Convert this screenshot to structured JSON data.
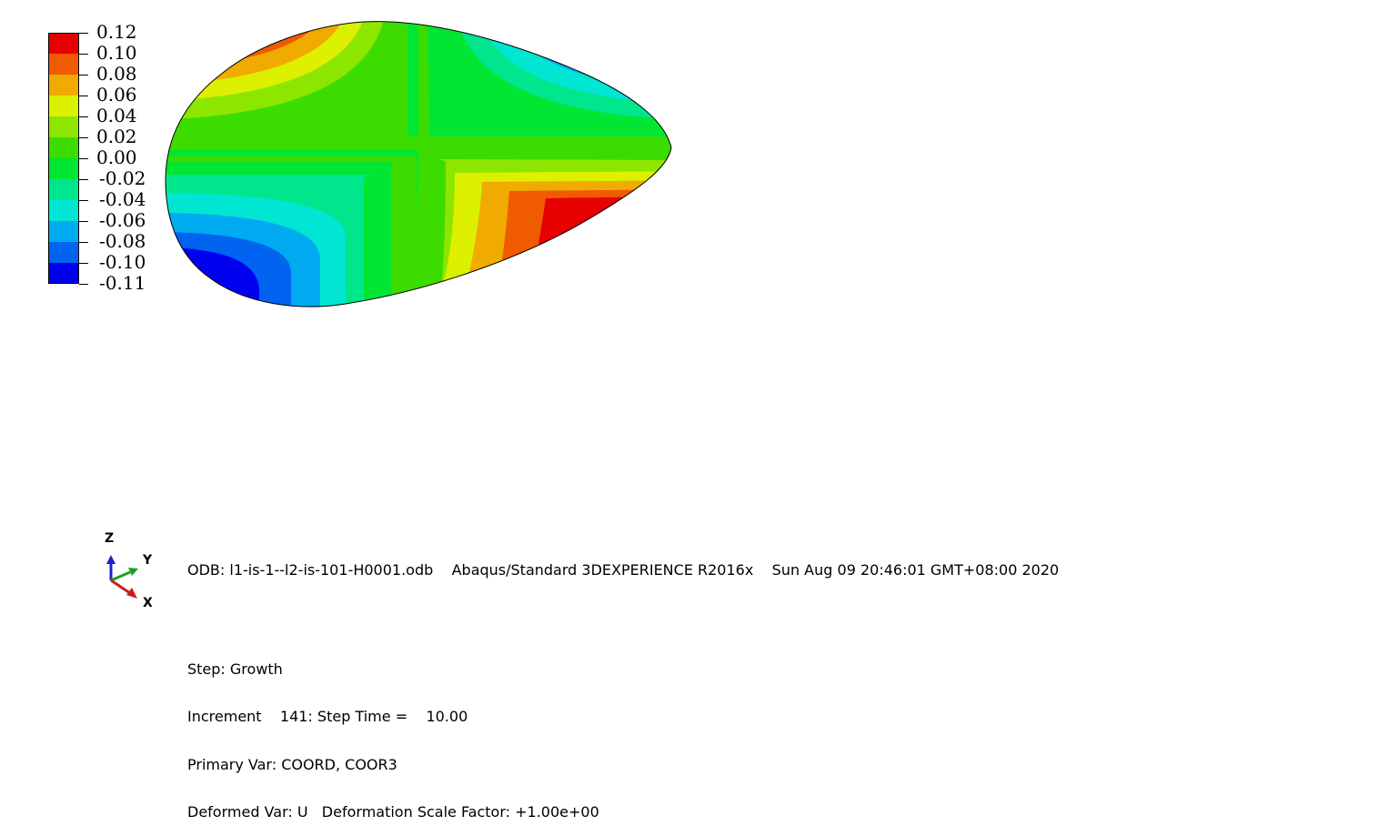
{
  "legend": {
    "labels": [
      "0.12",
      "0.10",
      "0.08",
      "0.06",
      "0.04",
      "0.02",
      "0.00",
      "-0.02",
      "-0.04",
      "-0.06",
      "-0.08",
      "-0.10",
      "-0.11"
    ],
    "colors": [
      "#e60000",
      "#f05a00",
      "#f0aa00",
      "#dcf000",
      "#8ce600",
      "#3cdc00",
      "#00e632",
      "#00e68c",
      "#00e6d2",
      "#00aaf0",
      "#0064f0",
      "#0000f0"
    ]
  },
  "triad": {
    "z_label": "Z",
    "y_label": "Y",
    "x_label": "X",
    "colors": {
      "z": "#1e1ec8",
      "y": "#1ea01e",
      "x": "#c81e1e"
    }
  },
  "info": {
    "odb_line": "ODB: l1-is-1--l2-is-101-H0001.odb    Abaqus/Standard 3DEXPERIENCE R2016x    Sun Aug 09 20:46:01 GMT+08:00 2020",
    "step_line": "Step: Growth",
    "increment_line": "Increment    141: Step Time =    10.00",
    "primary_var_line": "Primary Var: COORD, COOR3",
    "deformed_var_line": "Deformed Var: U   Deformation Scale Factor: +1.00e+00"
  }
}
